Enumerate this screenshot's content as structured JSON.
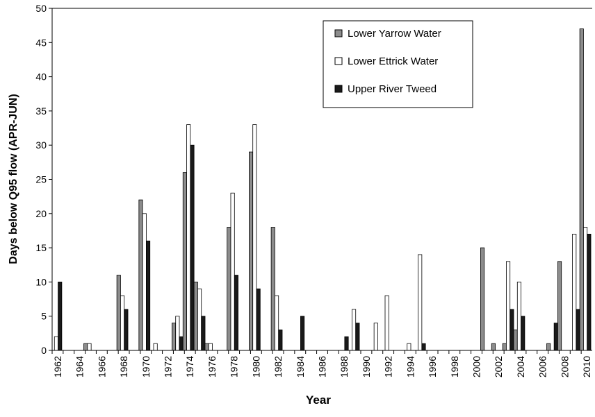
{
  "chart_data": {
    "type": "bar",
    "x_label": "Year",
    "y_label": "Days below Q95 flow (APR-JUN)",
    "categories": [
      "1962",
      null,
      "1964",
      null,
      "1966",
      null,
      "1968",
      null,
      "1970",
      null,
      "1972",
      null,
      "1974",
      null,
      "1976",
      null,
      "1978",
      null,
      "1980",
      null,
      "1982",
      null,
      "1984",
      null,
      "1986",
      null,
      "1988",
      null,
      "1990",
      null,
      "1992",
      null,
      "1994",
      null,
      "1996",
      null,
      "1998",
      null,
      "2000",
      null,
      "2002",
      null,
      "2004",
      null,
      "2006",
      null,
      "2008",
      null,
      "2010"
    ],
    "series": [
      {
        "name": "Lower Yarrow Water",
        "color": "#8c8c8c",
        "values": [
          0,
          0,
          0,
          1,
          0,
          0,
          11,
          0,
          22,
          0,
          0,
          4,
          26,
          10,
          1,
          0,
          18,
          0,
          29,
          0,
          18,
          0,
          0,
          0,
          0,
          0,
          0,
          0,
          0,
          0,
          0,
          0,
          0,
          0,
          0,
          0,
          0,
          0,
          0,
          15,
          1,
          1,
          3,
          0,
          0,
          1,
          13,
          0,
          47
        ]
      },
      {
        "name": "Lower Ettrick Water",
        "color": "#ffffff",
        "values": [
          2,
          0,
          0,
          1,
          0,
          0,
          8,
          0,
          20,
          1,
          0,
          5,
          33,
          9,
          1,
          0,
          23,
          0,
          33,
          0,
          8,
          0,
          0,
          0,
          0,
          0,
          0,
          6,
          0,
          4,
          8,
          0,
          1,
          14,
          0,
          0,
          0,
          0,
          0,
          0,
          0,
          13,
          10,
          0,
          0,
          0,
          0,
          17,
          18
        ]
      },
      {
        "name": "Upper River Tweed",
        "color": "#1a1a1a",
        "values": [
          10,
          0,
          0,
          0,
          0,
          0,
          6,
          0,
          16,
          0,
          0,
          2,
          30,
          5,
          0,
          0,
          11,
          0,
          9,
          0,
          3,
          0,
          5,
          0,
          0,
          0,
          2,
          4,
          0,
          0,
          0,
          0,
          0,
          1,
          0,
          0,
          0,
          0,
          0,
          0,
          0,
          6,
          5,
          0,
          0,
          4,
          0,
          6,
          17
        ]
      }
    ],
    "ylim": [
      0,
      50
    ],
    "yticks": [
      0,
      5,
      10,
      15,
      20,
      25,
      30,
      35,
      40,
      45,
      50
    ]
  }
}
